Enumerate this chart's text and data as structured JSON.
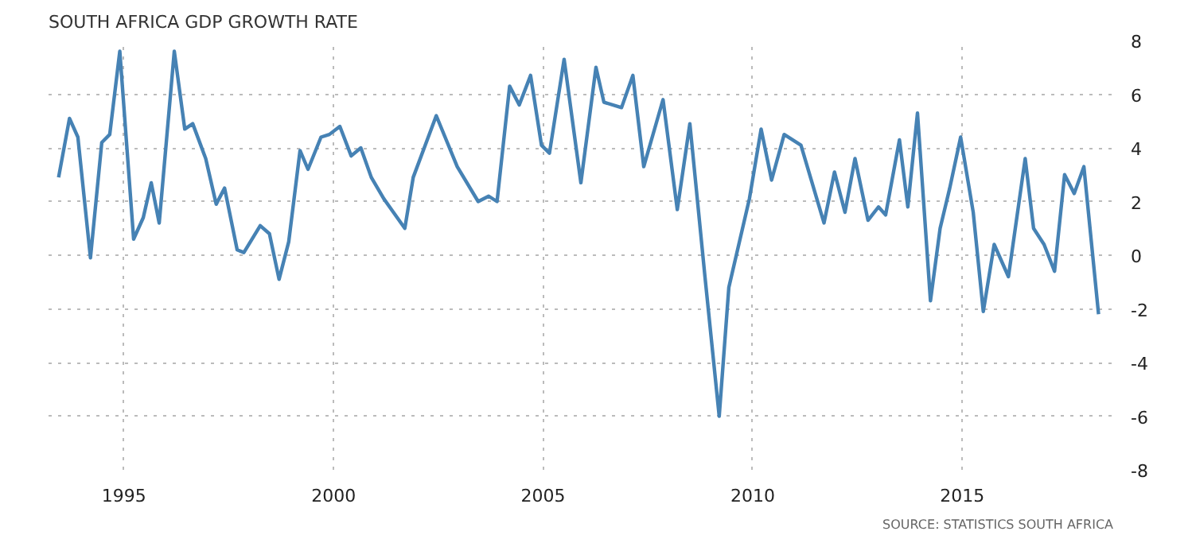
{
  "chart_data": {
    "type": "line",
    "title": "SOUTH AFRICA GDP GROWTH RATE",
    "x": [
      1993.44,
      1993.7,
      1993.9,
      1994.2,
      1994.47,
      1994.66,
      1994.9,
      1995.23,
      1995.46,
      1995.65,
      1995.84,
      1996.2,
      1996.45,
      1996.64,
      1996.95,
      1997.2,
      1997.4,
      1997.7,
      1997.86,
      1998.25,
      1998.47,
      1998.7,
      1998.93,
      1999.2,
      1999.39,
      1999.7,
      1999.9,
      2000.15,
      2000.42,
      2000.65,
      2000.9,
      2001.2,
      2001.7,
      2001.9,
      2002.45,
      2002.95,
      2003.45,
      2003.7,
      2003.9,
      2004.2,
      2004.43,
      2004.7,
      2004.96,
      2005.15,
      2005.5,
      2005.9,
      2006.26,
      2006.45,
      2006.87,
      2007.14,
      2007.4,
      2007.86,
      2008.2,
      2008.5,
      2008.86,
      2009.2,
      2009.43,
      2009.92,
      2010.2,
      2010.45,
      2010.75,
      2011.15,
      2011.7,
      2011.95,
      2012.2,
      2012.44,
      2012.75,
      2013.0,
      2013.17,
      2013.5,
      2013.7,
      2013.93,
      2014.24,
      2014.47,
      2014.7,
      2014.96,
      2015.26,
      2015.5,
      2015.76,
      2016.1,
      2016.5,
      2016.7,
      2016.95,
      2017.2,
      2017.44,
      2017.67,
      2017.9,
      2018.25
    ],
    "series": [
      {
        "color": "#4682b4",
        "values": [
          2.9,
          5.1,
          4.4,
          -0.1,
          4.2,
          4.5,
          7.6,
          0.6,
          1.4,
          2.7,
          1.2,
          7.6,
          4.7,
          4.9,
          3.6,
          1.9,
          2.5,
          0.2,
          0.1,
          1.1,
          0.8,
          -0.9,
          0.5,
          3.9,
          3.2,
          4.4,
          4.5,
          4.8,
          3.7,
          4.0,
          2.9,
          2.1,
          1.0,
          2.9,
          5.2,
          3.3,
          2.0,
          2.2,
          2.0,
          6.3,
          5.6,
          6.7,
          4.1,
          3.8,
          7.3,
          2.7,
          7.0,
          5.7,
          5.5,
          6.7,
          3.3,
          5.8,
          1.7,
          4.9,
          -0.8,
          -6.0,
          -1.2,
          2.1,
          4.7,
          2.8,
          4.5,
          4.1,
          1.2,
          3.1,
          1.6,
          3.6,
          1.3,
          1.8,
          1.5,
          4.3,
          1.8,
          5.3,
          -1.7,
          1.0,
          2.5,
          4.4,
          1.6,
          -2.1,
          0.4,
          -0.8,
          3.6,
          1.0,
          0.4,
          -0.6,
          3.0,
          2.3,
          3.3,
          -2.2
        ]
      }
    ],
    "xlim": [
      1993.2,
      2018.6
    ],
    "xticks": [
      1995,
      2000,
      2005,
      2010,
      2015
    ],
    "ylim": [
      -8,
      8
    ],
    "yticks": [
      -8,
      -6,
      -4,
      -2,
      0,
      2,
      4,
      6,
      8
    ],
    "grid": true,
    "marker": "none",
    "line_style": "solid",
    "annotations": [
      "SOURCE: STATISTICS SOUTH AFRICA"
    ]
  }
}
